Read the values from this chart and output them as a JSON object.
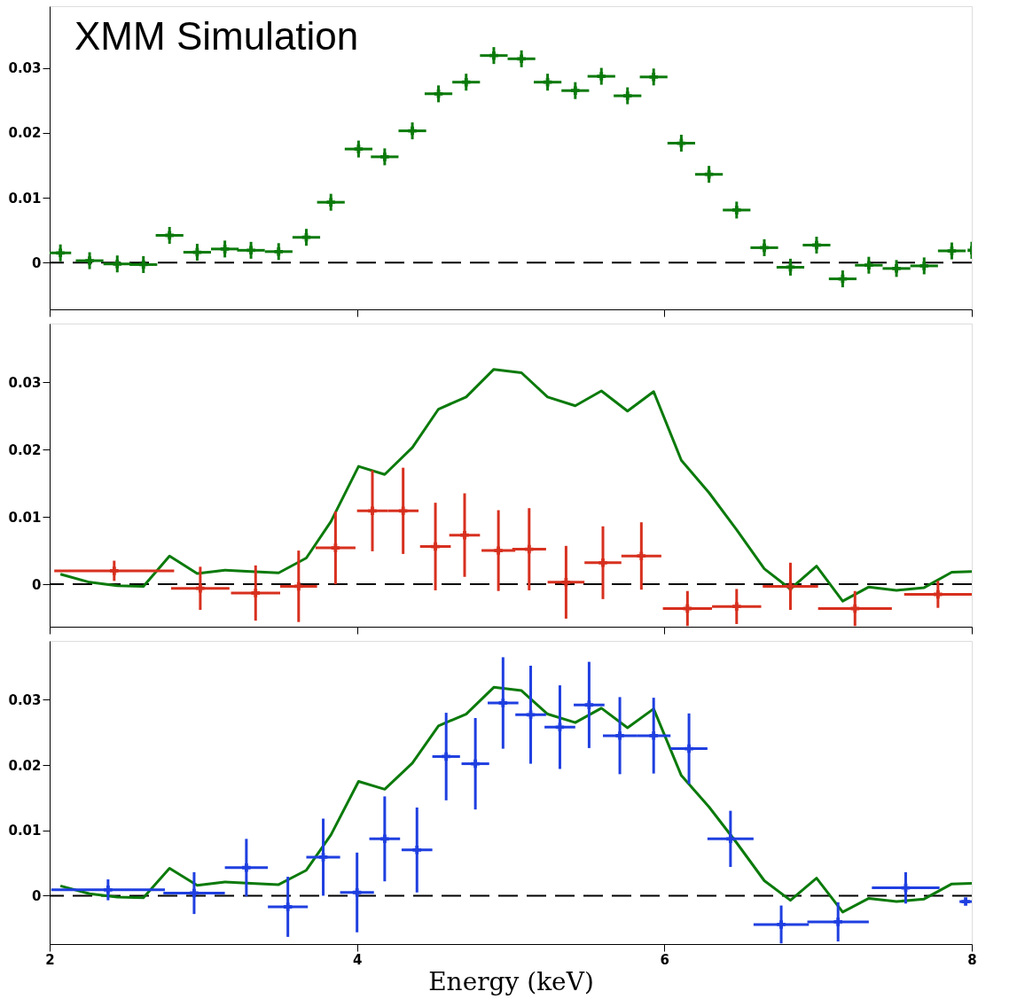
{
  "chart_data": [
    {
      "type": "scatter",
      "xlim": [
        2,
        8
      ],
      "xticks": [
        2,
        4,
        6,
        8
      ],
      "ylim": [
        -0.0072,
        0.0395
      ],
      "yticks": [
        0,
        0.01,
        0.02,
        0.03
      ],
      "tick_labels": "y",
      "grid": false,
      "annotations": [
        "XMM Simulation"
      ],
      "ref_lines": [
        {
          "axis": "y",
          "value": 0,
          "color": "#000000",
          "line_style": "dashed"
        }
      ],
      "series": [
        {
          "marker": "cross",
          "color": "#0b7a0b",
          "x": [
            2.07,
            2.26,
            2.44,
            2.61,
            2.78,
            2.96,
            3.14,
            3.31,
            3.49,
            3.67,
            3.83,
            4.01,
            4.18,
            4.36,
            4.53,
            4.71,
            4.89,
            5.07,
            5.24,
            5.42,
            5.59,
            5.76,
            5.93,
            6.11,
            6.29,
            6.47,
            6.65,
            6.82,
            6.99,
            7.16,
            7.33,
            7.51,
            7.69,
            7.87,
            8.0
          ],
          "values": [
            0.0015,
            0.0003,
            -0.0002,
            -0.0003,
            0.0042,
            0.0016,
            0.0021,
            0.0019,
            0.0017,
            0.0039,
            0.0093,
            0.0175,
            0.0163,
            0.0203,
            0.026,
            0.0278,
            0.0319,
            0.0314,
            0.0278,
            0.0265,
            0.0287,
            0.0257,
            0.0286,
            0.0184,
            0.0136,
            0.0081,
            0.0023,
            -0.0007,
            0.0027,
            -0.0025,
            -0.0004,
            -0.0009,
            -0.0005,
            0.0018,
            0.0019
          ],
          "errors": [
            0.0013,
            0.0013,
            0.0013,
            0.0013,
            0.0013,
            0.0013,
            0.0013,
            0.0013,
            0.0013,
            0.0013,
            0.0013,
            0.0013,
            0.0013,
            0.0013,
            0.0013,
            0.0013,
            0.0013,
            0.0013,
            0.0013,
            0.0013,
            0.0013,
            0.0013,
            0.0013,
            0.0013,
            0.0013,
            0.0013,
            0.0013,
            0.0013,
            0.0013,
            0.0013,
            0.0013,
            0.0013,
            0.0013,
            0.0013,
            0.0013
          ],
          "xerrors": [
            0.07,
            0.09,
            0.09,
            0.09,
            0.09,
            0.09,
            0.09,
            0.09,
            0.09,
            0.09,
            0.09,
            0.09,
            0.09,
            0.09,
            0.09,
            0.09,
            0.09,
            0.09,
            0.09,
            0.09,
            0.09,
            0.09,
            0.09,
            0.09,
            0.09,
            0.09,
            0.09,
            0.09,
            0.09,
            0.09,
            0.09,
            0.09,
            0.09,
            0.09,
            null
          ]
        }
      ]
    },
    {
      "type": "scatter",
      "xlim": [
        2,
        8
      ],
      "xticks": [
        2,
        4,
        6,
        8
      ],
      "ylim": [
        -0.0063,
        0.0387
      ],
      "yticks": [
        0,
        0.01,
        0.02,
        0.03
      ],
      "tick_labels": "y",
      "grid": false,
      "ref_lines": [
        {
          "axis": "y",
          "value": 0,
          "color": "#000000",
          "line_style": "dashed"
        }
      ],
      "series": [
        {
          "type": "line",
          "line_style": "solid",
          "color": "#0b7a0b",
          "x": [
            2.07,
            2.26,
            2.44,
            2.61,
            2.78,
            2.96,
            3.14,
            3.31,
            3.49,
            3.67,
            3.83,
            4.01,
            4.18,
            4.36,
            4.53,
            4.71,
            4.89,
            5.07,
            5.24,
            5.42,
            5.59,
            5.76,
            5.93,
            6.11,
            6.29,
            6.47,
            6.65,
            6.82,
            6.99,
            7.16,
            7.33,
            7.51,
            7.69,
            7.87,
            8.0
          ],
          "values": [
            0.0015,
            0.0003,
            -0.0002,
            -0.0003,
            0.0042,
            0.0016,
            0.0021,
            0.0019,
            0.0017,
            0.0039,
            0.0093,
            0.0175,
            0.0163,
            0.0203,
            0.026,
            0.0278,
            0.0319,
            0.0314,
            0.0278,
            0.0265,
            0.0287,
            0.0257,
            0.0286,
            0.0184,
            0.0136,
            0.0081,
            0.0023,
            -0.0007,
            0.0027,
            -0.0025,
            -0.0004,
            -0.0009,
            -0.0005,
            0.0018,
            0.0019
          ]
        },
        {
          "marker": "cross",
          "color": "#d7301f",
          "x": [
            2.42,
            2.98,
            3.34,
            3.62,
            3.86,
            4.1,
            4.3,
            4.51,
            4.7,
            4.92,
            5.12,
            5.36,
            5.6,
            5.85,
            6.15,
            6.47,
            6.82,
            7.24,
            7.78
          ],
          "values": [
            0.002,
            -0.0006,
            -0.0013,
            -0.0003,
            0.0054,
            0.0109,
            0.0109,
            0.0056,
            0.0073,
            0.005,
            0.0052,
            0.0003,
            0.0032,
            0.0042,
            -0.0036,
            -0.0033,
            -0.0003,
            -0.0036,
            -0.0015
          ],
          "errors": [
            0.0015,
            0.0032,
            0.0041,
            0.0053,
            0.0054,
            0.006,
            0.0064,
            0.0065,
            0.0062,
            0.006,
            0.0061,
            0.0054,
            0.0054,
            0.005,
            0.0026,
            0.0026,
            0.0035,
            0.0026,
            0.002
          ],
          "xerrors": [
            0.39,
            0.19,
            0.16,
            0.12,
            0.13,
            0.1,
            0.1,
            0.1,
            0.1,
            0.11,
            0.11,
            0.12,
            0.12,
            0.13,
            0.16,
            0.16,
            0.18,
            0.24,
            0.22
          ]
        }
      ]
    },
    {
      "type": "scatter",
      "xlim": [
        2,
        8
      ],
      "xticks": [
        2,
        4,
        6,
        8
      ],
      "ylim": [
        -0.0074,
        0.039
      ],
      "yticks": [
        0,
        0.01,
        0.02,
        0.03
      ],
      "xlabel": "Energy (keV)",
      "grid": false,
      "ref_lines": [
        {
          "axis": "y",
          "value": 0,
          "color": "#000000",
          "line_style": "dashed"
        }
      ],
      "series": [
        {
          "type": "line",
          "line_style": "solid",
          "color": "#0b7a0b",
          "x": [
            2.07,
            2.26,
            2.44,
            2.61,
            2.78,
            2.96,
            3.14,
            3.31,
            3.49,
            3.67,
            3.83,
            4.01,
            4.18,
            4.36,
            4.53,
            4.71,
            4.89,
            5.07,
            5.24,
            5.42,
            5.59,
            5.76,
            5.93,
            6.11,
            6.29,
            6.47,
            6.65,
            6.82,
            6.99,
            7.16,
            7.33,
            7.51,
            7.69,
            7.87,
            8.0
          ],
          "values": [
            0.0015,
            0.0003,
            -0.0002,
            -0.0003,
            0.0042,
            0.0016,
            0.0021,
            0.0019,
            0.0017,
            0.0039,
            0.0093,
            0.0175,
            0.0163,
            0.0203,
            0.026,
            0.0278,
            0.0319,
            0.0314,
            0.0278,
            0.0265,
            0.0287,
            0.0257,
            0.0286,
            0.0184,
            0.0136,
            0.0081,
            0.0023,
            -0.0007,
            0.0027,
            -0.0025,
            -0.0004,
            -0.0009,
            -0.0005,
            0.0018,
            0.0019
          ]
        },
        {
          "marker": "cross",
          "color": "#1f3fe0",
          "x": [
            2.38,
            2.94,
            3.28,
            3.55,
            3.78,
            4.0,
            4.18,
            4.39,
            4.58,
            4.77,
            4.95,
            5.13,
            5.32,
            5.51,
            5.71,
            5.93,
            6.16,
            6.43,
            6.76,
            7.13,
            7.57,
            7.96
          ],
          "values": [
            0.0009,
            0.0004,
            0.0043,
            -0.0017,
            0.0059,
            0.0005,
            0.0087,
            0.007,
            0.0213,
            0.0202,
            0.0295,
            0.0277,
            0.0258,
            0.0292,
            0.0245,
            0.0245,
            0.0225,
            0.0087,
            -0.0044,
            -0.004,
            0.0012,
            -0.0009
          ],
          "errors": [
            0.0016,
            0.0032,
            0.0044,
            0.0046,
            0.0059,
            0.0061,
            0.0065,
            0.0065,
            0.0067,
            0.007,
            0.007,
            0.0075,
            0.0064,
            0.0066,
            0.0059,
            0.0058,
            0.0054,
            0.0043,
            0.0029,
            0.003,
            0.0024,
            null
          ],
          "xerrors": [
            0.37,
            0.2,
            0.14,
            0.13,
            0.11,
            0.11,
            0.1,
            0.1,
            0.09,
            0.09,
            0.1,
            0.1,
            0.1,
            0.1,
            0.11,
            0.11,
            0.12,
            0.15,
            0.18,
            0.2,
            0.22,
            0.04
          ]
        }
      ]
    }
  ]
}
